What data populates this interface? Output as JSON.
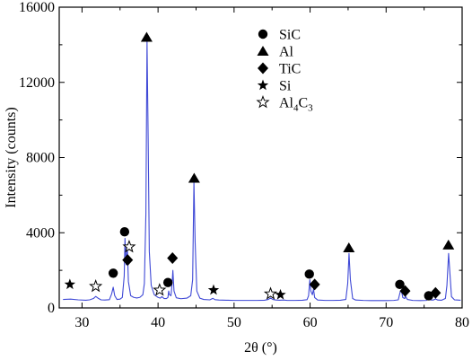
{
  "chart_data": {
    "type": "line",
    "xlabel": "2θ (°)",
    "ylabel": "Intensity (counts)",
    "xlim": [
      27,
      80
    ],
    "ylim": [
      0,
      16000
    ],
    "x_ticks": [
      30,
      40,
      50,
      60,
      70,
      80
    ],
    "y_ticks": [
      0,
      4000,
      8000,
      12000,
      16000
    ],
    "x_tick_labels": [
      "30",
      "40",
      "50",
      "60",
      "70",
      "80"
    ],
    "y_tick_labels": [
      "0",
      "4000",
      "8000",
      "12000",
      "16000"
    ],
    "grid": false,
    "legend_placement": "top-center",
    "colors": {
      "line": "#3f49d6",
      "markers": "#000000"
    },
    "series": [
      {
        "points": [
          [
            27.5,
            450
          ],
          [
            28.5,
            470
          ],
          [
            29.5,
            430
          ],
          [
            30.5,
            410
          ],
          [
            31.0,
            430
          ],
          [
            31.5,
            500
          ],
          [
            31.8,
            610
          ],
          [
            32.1,
            520
          ],
          [
            32.5,
            430
          ],
          [
            33.0,
            420
          ],
          [
            33.6,
            440
          ],
          [
            33.9,
            750
          ],
          [
            34.1,
            1100
          ],
          [
            34.3,
            650
          ],
          [
            34.6,
            450
          ],
          [
            35.0,
            470
          ],
          [
            35.3,
            560
          ],
          [
            35.55,
            1700
          ],
          [
            35.65,
            3700
          ],
          [
            35.8,
            2300
          ],
          [
            35.95,
            3300
          ],
          [
            36.1,
            1400
          ],
          [
            36.4,
            650
          ],
          [
            36.8,
            560
          ],
          [
            37.2,
            530
          ],
          [
            37.6,
            560
          ],
          [
            38.0,
            700
          ],
          [
            38.2,
            1300
          ],
          [
            38.4,
            5000
          ],
          [
            38.55,
            14200
          ],
          [
            38.7,
            9000
          ],
          [
            38.85,
            3000
          ],
          [
            39.1,
            1200
          ],
          [
            39.5,
            700
          ],
          [
            40.0,
            560
          ],
          [
            40.3,
            520
          ],
          [
            40.5,
            600
          ],
          [
            40.8,
            500
          ],
          [
            41.1,
            500
          ],
          [
            41.3,
            560
          ],
          [
            41.4,
            900
          ],
          [
            41.5,
            700
          ],
          [
            41.7,
            650
          ],
          [
            41.85,
            1300
          ],
          [
            41.95,
            2000
          ],
          [
            42.1,
            900
          ],
          [
            42.4,
            540
          ],
          [
            43.0,
            490
          ],
          [
            43.8,
            520
          ],
          [
            44.3,
            650
          ],
          [
            44.55,
            1500
          ],
          [
            44.72,
            6700
          ],
          [
            44.88,
            3500
          ],
          [
            45.1,
            900
          ],
          [
            45.5,
            520
          ],
          [
            46.0,
            450
          ],
          [
            46.8,
            430
          ],
          [
            47.2,
            510
          ],
          [
            47.5,
            440
          ],
          [
            48.0,
            420
          ],
          [
            49.0,
            410
          ],
          [
            50.0,
            400
          ],
          [
            51.0,
            400
          ],
          [
            52.0,
            400
          ],
          [
            53.0,
            400
          ],
          [
            54.0,
            410
          ],
          [
            54.5,
            450
          ],
          [
            54.8,
            530
          ],
          [
            55.1,
            450
          ],
          [
            55.5,
            420
          ],
          [
            56.0,
            410
          ],
          [
            56.5,
            420
          ],
          [
            57.0,
            400
          ],
          [
            58.0,
            400
          ],
          [
            59.0,
            410
          ],
          [
            59.6,
            440
          ],
          [
            59.8,
            650
          ],
          [
            59.97,
            1500
          ],
          [
            60.1,
            900
          ],
          [
            60.3,
            700
          ],
          [
            60.45,
            1000
          ],
          [
            60.6,
            550
          ],
          [
            61.0,
            420
          ],
          [
            62.0,
            400
          ],
          [
            63.0,
            400
          ],
          [
            64.0,
            410
          ],
          [
            64.7,
            450
          ],
          [
            64.95,
            1300
          ],
          [
            65.12,
            2900
          ],
          [
            65.3,
            1500
          ],
          [
            65.6,
            500
          ],
          [
            66.0,
            420
          ],
          [
            67.0,
            400
          ],
          [
            68.0,
            390
          ],
          [
            69.0,
            390
          ],
          [
            70.0,
            390
          ],
          [
            71.0,
            400
          ],
          [
            71.6,
            430
          ],
          [
            71.85,
            850
          ],
          [
            72.0,
            950
          ],
          [
            72.2,
            550
          ],
          [
            72.45,
            500
          ],
          [
            72.55,
            620
          ],
          [
            72.8,
            450
          ],
          [
            73.5,
            400
          ],
          [
            74.5,
            390
          ],
          [
            75.3,
            400
          ],
          [
            75.7,
            540
          ],
          [
            75.9,
            420
          ],
          [
            76.2,
            420
          ],
          [
            76.5,
            480
          ],
          [
            76.8,
            420
          ],
          [
            77.3,
            410
          ],
          [
            77.8,
            500
          ],
          [
            78.0,
            1200
          ],
          [
            78.22,
            2900
          ],
          [
            78.4,
            1800
          ],
          [
            78.6,
            600
          ],
          [
            79.0,
            430
          ],
          [
            79.8,
            410
          ]
        ]
      }
    ],
    "legend": [
      {
        "symbol": "filled-circle",
        "label": "SiC"
      },
      {
        "symbol": "filled-triangle",
        "label": "Al"
      },
      {
        "symbol": "filled-diamond",
        "label": "TiC"
      },
      {
        "symbol": "filled-star",
        "label": "Si"
      },
      {
        "symbol": "open-star",
        "label": "Al",
        "subscripts": [
          "4",
          "3"
        ],
        "label_mid": "C",
        "full_label": "Al4C3"
      }
    ],
    "peak_markers": [
      {
        "symbol": "filled-star",
        "x": 28.4,
        "y": 1250
      },
      {
        "symbol": "open-star",
        "x": 31.8,
        "y": 1150
      },
      {
        "symbol": "filled-circle",
        "x": 34.1,
        "y": 1850
      },
      {
        "symbol": "filled-circle",
        "x": 35.6,
        "y": 4050
      },
      {
        "symbol": "filled-diamond",
        "x": 36.0,
        "y": 2550
      },
      {
        "symbol": "open-star",
        "x": 36.2,
        "y": 3250
      },
      {
        "symbol": "filled-triangle",
        "x": 38.5,
        "y": 14400
      },
      {
        "symbol": "open-star",
        "x": 40.2,
        "y": 950
      },
      {
        "symbol": "filled-circle",
        "x": 41.3,
        "y": 1350
      },
      {
        "symbol": "filled-diamond",
        "x": 41.9,
        "y": 2650
      },
      {
        "symbol": "filled-triangle",
        "x": 44.75,
        "y": 6900
      },
      {
        "symbol": "filled-star",
        "x": 47.3,
        "y": 950
      },
      {
        "symbol": "open-star",
        "x": 54.8,
        "y": 750
      },
      {
        "symbol": "filled-star",
        "x": 56.1,
        "y": 700
      },
      {
        "symbol": "filled-circle",
        "x": 59.9,
        "y": 1800
      },
      {
        "symbol": "filled-diamond",
        "x": 60.6,
        "y": 1250
      },
      {
        "symbol": "filled-triangle",
        "x": 65.1,
        "y": 3200
      },
      {
        "symbol": "filled-circle",
        "x": 71.8,
        "y": 1250
      },
      {
        "symbol": "filled-diamond",
        "x": 72.5,
        "y": 900
      },
      {
        "symbol": "filled-circle",
        "x": 75.6,
        "y": 650
      },
      {
        "symbol": "filled-diamond",
        "x": 76.5,
        "y": 800
      },
      {
        "symbol": "filled-triangle",
        "x": 78.2,
        "y": 3350
      }
    ]
  }
}
